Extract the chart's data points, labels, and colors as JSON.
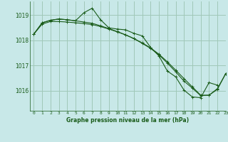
{
  "title": "Graphe pression niveau de la mer (hPa)",
  "bg_color": "#c8e8e8",
  "grid_color": "#a0c8b8",
  "line_color": "#1a5c1a",
  "xlim": [
    -0.5,
    23
  ],
  "ylim": [
    1015.2,
    1019.55
  ],
  "yticks": [
    1016,
    1017,
    1018,
    1019
  ],
  "xticks": [
    0,
    1,
    2,
    3,
    4,
    5,
    6,
    7,
    8,
    9,
    10,
    11,
    12,
    13,
    14,
    15,
    16,
    17,
    18,
    19,
    20,
    21,
    22,
    23
  ],
  "s1_x": [
    0,
    1,
    2,
    3,
    4,
    5,
    6,
    7,
    8,
    9,
    10,
    11,
    12,
    13,
    14,
    15,
    16,
    17,
    18,
    19,
    20,
    21,
    22
  ],
  "s1_y": [
    1018.25,
    1018.7,
    1018.8,
    1018.85,
    1018.82,
    1018.78,
    1019.1,
    1019.28,
    1018.82,
    1018.5,
    1018.45,
    1018.42,
    1018.28,
    1018.18,
    1017.72,
    1017.38,
    1016.78,
    1016.55,
    1016.02,
    1015.75,
    1015.72,
    1016.32,
    1016.22
  ],
  "s2_x": [
    0,
    1,
    2,
    3,
    4,
    5,
    6,
    7,
    8,
    9,
    10,
    11,
    12,
    13,
    14,
    15,
    16,
    17,
    18,
    19,
    20,
    21,
    22,
    23
  ],
  "s2_y": [
    1018.25,
    1018.65,
    1018.75,
    1018.75,
    1018.73,
    1018.7,
    1018.67,
    1018.63,
    1018.55,
    1018.45,
    1018.34,
    1018.22,
    1018.07,
    1017.9,
    1017.7,
    1017.45,
    1017.15,
    1016.82,
    1016.48,
    1016.15,
    1015.82,
    1015.82,
    1016.05,
    1016.68
  ],
  "s3_x": [
    0,
    1,
    2,
    3,
    4,
    5,
    6,
    7,
    8,
    9,
    10,
    11,
    12,
    13,
    14,
    15,
    16,
    17,
    18,
    19,
    20,
    21,
    22,
    23
  ],
  "s3_y": [
    1018.25,
    1018.7,
    1018.8,
    1018.85,
    1018.82,
    1018.78,
    1018.73,
    1018.68,
    1018.58,
    1018.47,
    1018.35,
    1018.22,
    1018.07,
    1017.88,
    1017.68,
    1017.42,
    1017.1,
    1016.75,
    1016.38,
    1016.1,
    1015.8,
    1015.82,
    1016.08,
    1016.68
  ]
}
